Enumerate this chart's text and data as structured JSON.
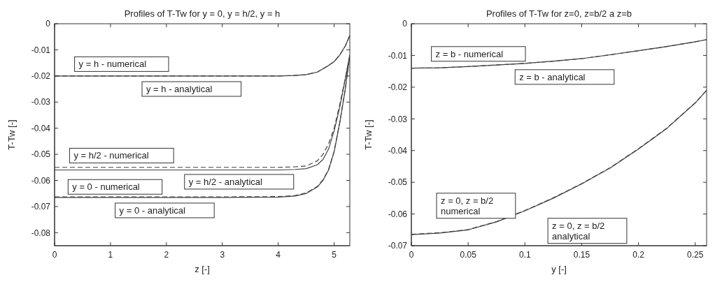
{
  "chart_data": [
    {
      "type": "line",
      "title": "Profiles of T-Tw for y = 0, y = h/2, y = h",
      "xlabel": "z [-]",
      "ylabel": "T-Tw [-]",
      "xlim": [
        0,
        5.28
      ],
      "xticks": [
        0,
        1,
        2,
        3,
        4,
        5
      ],
      "ylim": [
        -0.085,
        0
      ],
      "yticks": [
        0,
        -0.01,
        -0.02,
        -0.03,
        -0.04,
        -0.05,
        -0.06,
        -0.07,
        -0.08
      ],
      "series": [
        {
          "color": "#404040",
          "line_style": "solid",
          "x": [
            0,
            1,
            2,
            3,
            4,
            4.3,
            4.5,
            4.7,
            4.9,
            5.0,
            5.1,
            5.2,
            5.28
          ],
          "values": [
            -0.02,
            -0.02,
            -0.02,
            -0.02,
            -0.02,
            -0.0198,
            -0.0195,
            -0.0185,
            -0.016,
            -0.0145,
            -0.012,
            -0.0085,
            -0.0045
          ]
        },
        {
          "color": "#404040",
          "line_style": "dashed",
          "x": [
            0,
            1,
            2,
            3,
            4,
            4.3,
            4.5,
            4.7,
            4.9,
            5.0,
            5.1,
            5.2,
            5.28
          ],
          "values": [
            -0.02,
            -0.02,
            -0.02,
            -0.02,
            -0.02,
            -0.0198,
            -0.0195,
            -0.0185,
            -0.016,
            -0.0145,
            -0.012,
            -0.0085,
            -0.0045
          ]
        },
        {
          "color": "#404040",
          "line_style": "solid",
          "x": [
            0,
            1,
            2,
            3,
            4,
            4.3,
            4.5,
            4.7,
            4.8,
            4.9,
            5.0,
            5.1,
            5.2,
            5.28
          ],
          "values": [
            -0.056,
            -0.056,
            -0.056,
            -0.056,
            -0.056,
            -0.0558,
            -0.0555,
            -0.054,
            -0.052,
            -0.048,
            -0.041,
            -0.032,
            -0.021,
            -0.012
          ]
        },
        {
          "color": "#404040",
          "line_style": "dashed",
          "x": [
            0,
            1,
            2,
            3,
            4,
            4.3,
            4.5,
            4.7,
            4.8,
            4.9,
            5.0,
            5.1,
            5.2,
            5.28
          ],
          "values": [
            -0.055,
            -0.055,
            -0.055,
            -0.055,
            -0.055,
            -0.0548,
            -0.0545,
            -0.0525,
            -0.05,
            -0.046,
            -0.04,
            -0.031,
            -0.021,
            -0.012
          ]
        },
        {
          "color": "#404040",
          "line_style": "solid",
          "x": [
            0,
            1,
            2,
            3,
            4,
            4.3,
            4.5,
            4.7,
            4.8,
            4.9,
            5.0,
            5.1,
            5.2,
            5.28
          ],
          "values": [
            -0.0665,
            -0.0665,
            -0.0665,
            -0.0665,
            -0.0664,
            -0.066,
            -0.065,
            -0.0625,
            -0.06,
            -0.056,
            -0.049,
            -0.038,
            -0.025,
            -0.012
          ]
        },
        {
          "color": "#404040",
          "line_style": "dashed",
          "x": [
            0,
            1,
            2,
            3,
            4,
            4.3,
            4.5,
            4.7,
            4.8,
            4.9,
            5.0,
            5.1,
            5.2,
            5.28
          ],
          "values": [
            -0.0663,
            -0.0663,
            -0.0663,
            -0.0663,
            -0.0662,
            -0.0658,
            -0.0648,
            -0.0623,
            -0.0598,
            -0.0558,
            -0.0488,
            -0.0378,
            -0.0248,
            -0.012
          ]
        }
      ],
      "annotations": [
        "y = h - numerical",
        "y = h - analytical",
        "y = h/2 - numerical",
        "y = h/2 - analytical",
        "y = 0 - numerical",
        "y = 0 - analytical"
      ]
    },
    {
      "type": "line",
      "title": "Profiles of T-Tw for z=0, z=b/2 a z=b",
      "xlabel": "y [-]",
      "ylabel": "T-Tw [-]",
      "xlim": [
        0,
        0.26
      ],
      "xticks": [
        0,
        0.05,
        0.1,
        0.15,
        0.2,
        0.25
      ],
      "ylim": [
        -0.07,
        0
      ],
      "yticks": [
        0,
        -0.01,
        -0.02,
        -0.03,
        -0.04,
        -0.05,
        -0.06,
        -0.07
      ],
      "series": [
        {
          "color": "#404040",
          "line_style": "solid",
          "x": [
            0,
            0.025,
            0.05,
            0.075,
            0.1,
            0.125,
            0.15,
            0.175,
            0.2,
            0.225,
            0.25,
            0.26
          ],
          "values": [
            -0.014,
            -0.0139,
            -0.0135,
            -0.013,
            -0.0125,
            -0.0118,
            -0.011,
            -0.0098,
            -0.0085,
            -0.0072,
            -0.0057,
            -0.005
          ]
        },
        {
          "color": "#404040",
          "line_style": "dashed",
          "x": [
            0,
            0.025,
            0.05,
            0.075,
            0.1,
            0.125,
            0.15,
            0.175,
            0.2,
            0.225,
            0.25,
            0.26
          ],
          "values": [
            -0.014,
            -0.0139,
            -0.0135,
            -0.013,
            -0.0125,
            -0.0118,
            -0.011,
            -0.0098,
            -0.0085,
            -0.0072,
            -0.0057,
            -0.005
          ]
        },
        {
          "color": "#404040",
          "line_style": "solid",
          "x": [
            0,
            0.025,
            0.05,
            0.075,
            0.1,
            0.125,
            0.15,
            0.175,
            0.2,
            0.225,
            0.25,
            0.26
          ],
          "values": [
            -0.0665,
            -0.066,
            -0.065,
            -0.0625,
            -0.059,
            -0.055,
            -0.0505,
            -0.0455,
            -0.0395,
            -0.033,
            -0.025,
            -0.021
          ]
        },
        {
          "color": "#404040",
          "line_style": "dashed",
          "x": [
            0,
            0.025,
            0.05,
            0.075,
            0.1,
            0.125,
            0.15,
            0.175,
            0.2,
            0.225,
            0.25,
            0.26
          ],
          "values": [
            -0.0664,
            -0.0659,
            -0.0649,
            -0.0624,
            -0.0589,
            -0.0549,
            -0.0504,
            -0.0454,
            -0.0394,
            -0.0329,
            -0.0249,
            -0.021
          ]
        }
      ],
      "annotations": [
        "z = b - numerical",
        "z = b - analytical",
        "z = 0, z = b/2\nnumerical",
        "z = 0, z = b/2\nanalytical"
      ]
    }
  ]
}
